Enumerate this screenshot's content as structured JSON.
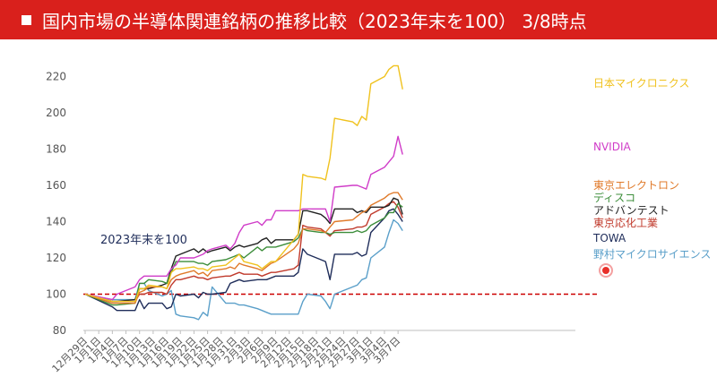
{
  "title": "国内市場の半導体関連銘柄の推移比較（2023年末を100） 3/8時点",
  "annotation": "2023年末を100",
  "chart_data": {
    "type": "line",
    "ylim": [
      80,
      230
    ],
    "yticks": [
      80,
      100,
      120,
      140,
      160,
      180,
      200,
      220
    ],
    "baseline": {
      "value": 100,
      "color": "#cc0000",
      "style": "dashed"
    },
    "grid": false,
    "legend_placement": "right",
    "xticks": [
      "12月29日",
      "1月1日",
      "1月4日",
      "1月7日",
      "1月10日",
      "1月13日",
      "1月16日",
      "1月19日",
      "1月22日",
      "1月25日",
      "1月28日",
      "1月31日",
      "2月3日",
      "2月6日",
      "2月9日",
      "2月12日",
      "2月15日",
      "2月18日",
      "2月21日",
      "2月24日",
      "2月27日",
      "3月1日",
      "3月4日",
      "3月7日"
    ],
    "x": [
      "12-29",
      "01-04",
      "01-05",
      "01-09",
      "01-10",
      "01-11",
      "01-12",
      "01-15",
      "01-16",
      "01-17",
      "01-18",
      "01-19",
      "01-22",
      "01-23",
      "01-24",
      "01-25",
      "01-26",
      "01-29",
      "01-30",
      "01-31",
      "02-01",
      "02-02",
      "02-05",
      "02-06",
      "02-07",
      "02-08",
      "02-09",
      "02-13",
      "02-14",
      "02-15",
      "02-16",
      "02-19",
      "02-20",
      "02-21",
      "02-22",
      "02-26",
      "02-27",
      "02-28",
      "02-29",
      "03-01",
      "03-04",
      "03-05",
      "03-06",
      "03-07",
      "03-08"
    ],
    "series": [
      {
        "name": "日本マイクロニクス",
        "color": "#f0c21e",
        "values": [
          100,
          96,
          96,
          96,
          103,
          103,
          105,
          104,
          103,
          112,
          114,
          114,
          115,
          114,
          114,
          113,
          115,
          116,
          118,
          120,
          122,
          118,
          116,
          114,
          116,
          118,
          118,
          130,
          133,
          166,
          165,
          164,
          163,
          175,
          197,
          195,
          193,
          198,
          196,
          216,
          220,
          224,
          226,
          226,
          213
        ]
      },
      {
        "name": "NVIDIA",
        "color": "#d03cc8",
        "values": [
          100,
          97,
          100,
          104,
          108,
          110,
          110,
          110,
          110,
          114,
          116,
          120,
          120,
          121,
          122,
          124,
          125,
          127,
          125,
          128,
          134,
          138,
          140,
          138,
          141,
          141,
          146,
          146,
          146,
          147,
          147,
          147,
          147,
          140,
          159,
          160,
          160,
          159,
          158,
          166,
          170,
          173,
          176,
          187,
          177
        ]
      },
      {
        "name": "東京エレクトロン",
        "color": "#e07a2a",
        "values": [
          100,
          95,
          95,
          95,
          101,
          102,
          104,
          104,
          103,
          108,
          110,
          111,
          113,
          111,
          112,
          110,
          113,
          114,
          115,
          114,
          117,
          116,
          114,
          113,
          115,
          117,
          118,
          125,
          128,
          136,
          136,
          135,
          134,
          137,
          140,
          141,
          143,
          145,
          146,
          149,
          153,
          155,
          156,
          156,
          152
        ]
      },
      {
        "name": "ディスコ",
        "color": "#3c8d3a",
        "values": [
          100,
          94,
          94,
          95,
          106,
          106,
          108,
          107,
          106,
          112,
          118,
          118,
          118,
          117,
          117,
          116,
          118,
          119,
          120,
          121,
          122,
          120,
          126,
          124,
          126,
          126,
          126,
          129,
          131,
          136,
          135,
          134,
          134,
          133,
          134,
          134,
          135,
          134,
          135,
          138,
          142,
          145,
          145,
          150,
          148
        ]
      },
      {
        "name": "アドバンテスト",
        "color": "#222222",
        "values": [
          100,
          96,
          96,
          97,
          103,
          103,
          103,
          105,
          106,
          114,
          121,
          122,
          125,
          123,
          125,
          123,
          124,
          126,
          124,
          126,
          127,
          126,
          128,
          130,
          131,
          128,
          130,
          130,
          133,
          146,
          146,
          144,
          142,
          139,
          147,
          147,
          145,
          146,
          145,
          148,
          148,
          149,
          153,
          152,
          144
        ]
      },
      {
        "name": "東京応化工業",
        "color": "#c0392b",
        "values": [
          100,
          96,
          96,
          96,
          100,
          100,
          101,
          101,
          100,
          105,
          108,
          108,
          110,
          109,
          109,
          108,
          109,
          110,
          110,
          111,
          112,
          111,
          111,
          110,
          111,
          112,
          112,
          114,
          116,
          138,
          137,
          136,
          134,
          132,
          135,
          136,
          137,
          137,
          138,
          144,
          148,
          150,
          151,
          148,
          142
        ]
      },
      {
        "name": "TOWA",
        "color": "#1f2d5a",
        "values": [
          100,
          93,
          91,
          91,
          97,
          92,
          95,
          95,
          92,
          93,
          100,
          99,
          100,
          98,
          101,
          100,
          100,
          101,
          106,
          107,
          108,
          107,
          108,
          108,
          108,
          109,
          110,
          110,
          112,
          125,
          122,
          119,
          118,
          108,
          122,
          122,
          123,
          121,
          122,
          134,
          142,
          146,
          147,
          144,
          140
        ]
      },
      {
        "name": "野村マイクロサイエンス",
        "color": "#5a9fc9",
        "values": [
          100,
          97,
          97,
          97,
          106,
          106,
          102,
          99,
          100,
          102,
          89,
          88,
          87,
          86,
          90,
          88,
          104,
          95,
          95,
          95,
          94,
          94,
          92,
          91,
          90,
          89,
          89,
          89,
          89,
          96,
          100,
          99,
          96,
          92,
          100,
          104,
          105,
          108,
          109,
          120,
          126,
          134,
          141,
          139,
          135
        ]
      }
    ]
  }
}
